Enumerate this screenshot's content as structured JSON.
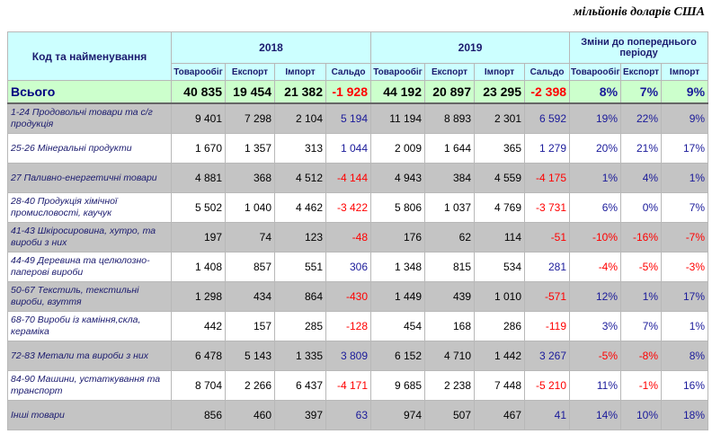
{
  "unit": "мільйонів доларів США",
  "table": {
    "header": {
      "name": "Код та найменування",
      "groups": [
        "2018",
        "2019",
        "Зміни до попереднього періоду"
      ],
      "columns": [
        "Товарообіг",
        "Експорт",
        "Імпорт",
        "Сальдо",
        "Товарообіг",
        "Експорт",
        "Імпорт",
        "Сальдо",
        "Товарообіг",
        "Експорт",
        "Імпорт"
      ]
    },
    "total": {
      "name": "Всього",
      "values": [
        "40 835",
        "19 454",
        "21 382",
        "-1 928",
        "44 192",
        "20 897",
        "23 295",
        "-2 398",
        "8%",
        "7%",
        "9%"
      ]
    },
    "rows": [
      {
        "name": "1-24 Продовольчі товари та с/г продукція",
        "values": [
          "9 401",
          "7 298",
          "2 104",
          "5 194",
          "11 194",
          "8 893",
          "2 301",
          "6 592",
          "19%",
          "22%",
          "9%"
        ]
      },
      {
        "name": "25-26 Мінеральні продукти",
        "values": [
          "1 670",
          "1 357",
          "313",
          "1 044",
          "2 009",
          "1 644",
          "365",
          "1 279",
          "20%",
          "21%",
          "17%"
        ]
      },
      {
        "name": "27 Паливно-енергетичні товари",
        "values": [
          "4 881",
          "368",
          "4 512",
          "-4 144",
          "4 943",
          "384",
          "4 559",
          "-4 175",
          "1%",
          "4%",
          "1%"
        ]
      },
      {
        "name": "28-40 Продукція хімічної промисловості, каучук",
        "values": [
          "5 502",
          "1 040",
          "4 462",
          "-3 422",
          "5 806",
          "1 037",
          "4 769",
          "-3 731",
          "6%",
          "0%",
          "7%"
        ]
      },
      {
        "name": "41-43 Шкіросировина, хутро, та вироби з них",
        "values": [
          "197",
          "74",
          "123",
          "-48",
          "176",
          "62",
          "114",
          "-51",
          "-10%",
          "-16%",
          "-7%"
        ]
      },
      {
        "name": "44-49 Деревина та целюлозно-паперові вироби",
        "values": [
          "1 408",
          "857",
          "551",
          "306",
          "1 348",
          "815",
          "534",
          "281",
          "-4%",
          "-5%",
          "-3%"
        ]
      },
      {
        "name": "50-67 Текстиль, текстильні вироби, взуття",
        "values": [
          "1 298",
          "434",
          "864",
          "-430",
          "1 449",
          "439",
          "1 010",
          "-571",
          "12%",
          "1%",
          "17%"
        ]
      },
      {
        "name": "68-70 Вироби із каміння,скла, кераміка",
        "values": [
          "442",
          "157",
          "285",
          "-128",
          "454",
          "168",
          "286",
          "-119",
          "3%",
          "7%",
          "1%"
        ]
      },
      {
        "name": "72-83 Метали та вироби з них",
        "values": [
          "6 478",
          "5 143",
          "1 335",
          "3 809",
          "6 152",
          "4 710",
          "1 442",
          "3 267",
          "-5%",
          "-8%",
          "8%"
        ]
      },
      {
        "name": "84-90 Машини, устаткування та транспорт",
        "values": [
          "8 704",
          "2 266",
          "6 437",
          "-4 171",
          "9 685",
          "2 238",
          "7 448",
          "-5 210",
          "11%",
          "-1%",
          "16%"
        ]
      },
      {
        "name": "Інші товари",
        "values": [
          "856",
          "460",
          "397",
          "63",
          "974",
          "507",
          "467",
          "41",
          "14%",
          "10%",
          "18%"
        ]
      }
    ]
  }
}
